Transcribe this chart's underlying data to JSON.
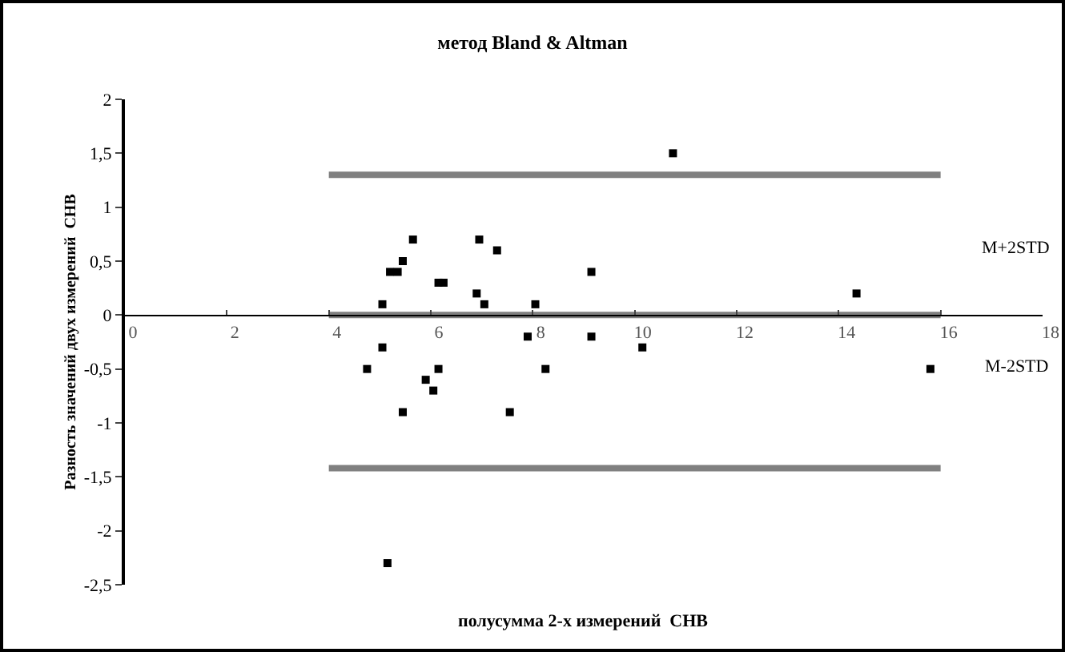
{
  "chart_data": {
    "type": "scatter",
    "title": "метод Bland & Altman",
    "xlabel": "полусумма 2-х измерений  СНВ",
    "ylabel": "Разность значений двух измерений  СНВ",
    "xlim": [
      0,
      18
    ],
    "xticks": [
      0,
      2,
      4,
      6,
      8,
      10,
      12,
      14,
      16,
      18
    ],
    "ylim": [
      -2.5,
      2
    ],
    "yticks": [
      {
        "value": -2.5,
        "label": "-2,5"
      },
      -2,
      {
        "value": -1.5,
        "label": "-1,5"
      },
      -1,
      {
        "value": -0.5,
        "label": "-0,5"
      },
      0,
      {
        "value": 0.5,
        "label": "0,5"
      },
      1,
      {
        "value": 1.5,
        "label": "1,5"
      },
      2
    ],
    "grid": false,
    "legend": false,
    "marker": "square",
    "series": [
      {
        "type": "line",
        "color": "#808080",
        "x": [
          4,
          16
        ],
        "values": [
          0,
          0
        ],
        "marker": "none",
        "line_style": "solid"
      },
      {
        "type": "line",
        "color": "#808080",
        "x": [
          4,
          16
        ],
        "values": [
          1.3,
          1.3
        ],
        "marker": "none",
        "line_style": "solid"
      },
      {
        "type": "line",
        "color": "#808080",
        "x": [
          4,
          16
        ],
        "values": [
          -1.42,
          -1.42
        ],
        "marker": "none",
        "line_style": "solid"
      },
      {
        "color": "#000000",
        "x": [
          10.75,
          5.65,
          6.95,
          7.3,
          5.45,
          5.2,
          5.35,
          6.15,
          6.25,
          9.15,
          6.9,
          5.05,
          7.05,
          8.05,
          7.9,
          9.15,
          5.05,
          10.15,
          4.75,
          6.15,
          8.25,
          5.9,
          6.05,
          5.45,
          7.55,
          14.35,
          15.8,
          5.15
        ],
        "values": [
          1.5,
          0.7,
          0.7,
          0.6,
          0.5,
          0.4,
          0.4,
          0.3,
          0.3,
          0.4,
          0.2,
          0.1,
          0.1,
          0.1,
          -0.2,
          -0.2,
          -0.3,
          -0.3,
          -0.5,
          -0.5,
          -0.5,
          -0.6,
          -0.7,
          -0.9,
          -0.9,
          0.2,
          -0.5,
          -2.3
        ]
      }
    ],
    "annotations": [
      "M+2STD",
      "M-2STD"
    ]
  }
}
